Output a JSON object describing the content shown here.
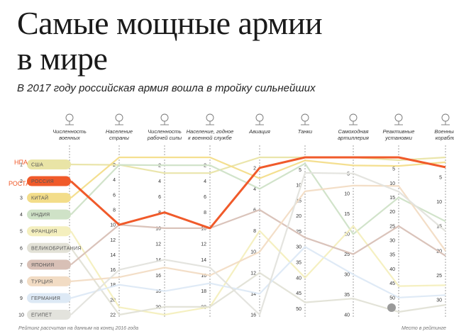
{
  "header": {
    "title_line1": "Самые мощные армии",
    "title_line2": "в мире",
    "subtitle": "В 2017 году российская армия вошла в тройку сильнейших"
  },
  "footnote": "Рейтинг рассчитан на данным на конец 2016 года",
  "legend_note": "Место в рейтинге",
  "highlight_labels": {
    "usa": "НПА",
    "russia": "РОСТА"
  },
  "colors": {
    "russia": "#f05a2a",
    "axis": "#999999",
    "text": "#333333"
  },
  "chart_data": {
    "type": "parallel-coordinates",
    "title": "Самые мощные армии в мире",
    "subtitle": "В 2017 году российская армия вошла в тройку сильнейших",
    "countries": [
      {
        "rank": "1",
        "name": "США",
        "color": "#e9e4a6",
        "highlight": false
      },
      {
        "rank": "2",
        "name": "РОССИЯ",
        "color": "#f05a2a",
        "highlight": true
      },
      {
        "rank": "3",
        "name": "КИТАЙ",
        "color": "#f3dd8a",
        "highlight": false
      },
      {
        "rank": "4",
        "name": "ИНДИЯ",
        "color": "#cfe2c7",
        "highlight": false
      },
      {
        "rank": "5",
        "name": "ФРАНЦИЯ",
        "color": "#f4efbe",
        "highlight": false
      },
      {
        "rank": "6",
        "name": "ВЕЛИКОБРИТАНИЯ",
        "color": "#e2e1d6",
        "highlight": false
      },
      {
        "rank": "7",
        "name": "ЯПОНИЯ",
        "color": "#d8c0b6",
        "highlight": false
      },
      {
        "rank": "8",
        "name": "ТУРЦИЯ",
        "color": "#f2dcc4",
        "highlight": false
      },
      {
        "rank": "9",
        "name": "ГЕРМАНИЯ",
        "color": "#dde9f5",
        "highlight": false
      },
      {
        "rank": "10",
        "name": "ЕГИПЕТ",
        "color": "#e3e3dd",
        "highlight": false
      }
    ],
    "categories": [
      {
        "label": [
          "Численность",
          "военных"
        ],
        "icon": "soldier-icon",
        "ticks": []
      },
      {
        "label": [
          "Население",
          "страны"
        ],
        "icon": "population-icon",
        "ticks": [
          "2",
          "4",
          "6",
          "8",
          "10",
          "12",
          "14",
          "16",
          "18",
          "20",
          "22"
        ]
      },
      {
        "label": [
          "Численность",
          "рабочей силы"
        ],
        "icon": "workforce-icon",
        "ticks": [
          "2",
          "4",
          "6",
          "8",
          "10",
          "12",
          "14",
          "16",
          "18",
          "20"
        ]
      },
      {
        "label": [
          "Население, годное",
          "к военной службе"
        ],
        "icon": "fit-population-icon",
        "ticks": [
          "2",
          "4",
          "6",
          "8",
          "10",
          "12",
          "14",
          "16",
          "18",
          "20"
        ]
      },
      {
        "label": [
          "Авиация"
        ],
        "icon": "aircraft-icon",
        "ticks": [
          "2",
          "4",
          "6",
          "8",
          "10",
          "12",
          "14",
          "16"
        ]
      },
      {
        "label": [
          "Танки"
        ],
        "icon": "tank-icon",
        "ticks": [
          "5",
          "10",
          "15",
          "20",
          "25",
          "30",
          "35",
          "40",
          "45",
          "50"
        ]
      },
      {
        "label": [
          "Самоходная",
          "артиллерия"
        ],
        "icon": "artillery-icon",
        "ticks": [
          "5",
          "10",
          "15",
          "20",
          "25",
          "30",
          "35",
          "40"
        ]
      },
      {
        "label": [
          "Реактивные",
          "установки"
        ],
        "icon": "rocket-launcher-icon",
        "ticks": [
          "5",
          "10",
          "15",
          "20",
          "25",
          "30",
          "35",
          "40",
          "45",
          "50"
        ]
      },
      {
        "label": [
          "Военные",
          "корабли"
        ],
        "icon": "warship-icon",
        "ticks": [
          "5",
          "10",
          "15",
          "20",
          "25",
          "30"
        ]
      }
    ],
    "series": [
      {
        "name": "США",
        "values": [
          1,
          2,
          3,
          3,
          1,
          1,
          1,
          2,
          1
        ]
      },
      {
        "name": "РОССИЯ",
        "values": [
          2,
          10,
          8,
          10,
          2,
          1,
          1,
          1,
          3
        ]
      },
      {
        "name": "КИТАЙ",
        "values": [
          3,
          1,
          1,
          1,
          3,
          2,
          3,
          4,
          2
        ]
      },
      {
        "name": "ИНДИЯ",
        "values": [
          4,
          2,
          2,
          2,
          4,
          3,
          20,
          15,
          14
        ]
      },
      {
        "name": "ФРАНЦИЯ",
        "values": [
          5,
          21,
          21,
          20,
          8,
          40,
          18,
          46,
          27
        ]
      },
      {
        "name": "ВЕЛИКОБРИТАНИЯ",
        "values": [
          6,
          22,
          20,
          20,
          12,
          48,
          36,
          55,
          31
        ]
      },
      {
        "name": "ЯПОНИЯ",
        "values": [
          7,
          10,
          10,
          10,
          6,
          27,
          25,
          25,
          21
        ]
      },
      {
        "name": "ТУРЦИЯ",
        "values": [
          8,
          17,
          15,
          16,
          10,
          12,
          8,
          11,
          20
        ]
      },
      {
        "name": "ГЕРМАНИЯ",
        "values": [
          9,
          18,
          18,
          17,
          14,
          30,
          30,
          50,
          29
        ]
      },
      {
        "name": "ЕГИПЕТ",
        "values": [
          10,
          16,
          14,
          15,
          16,
          6,
          5,
          13,
          16
        ]
      }
    ]
  }
}
